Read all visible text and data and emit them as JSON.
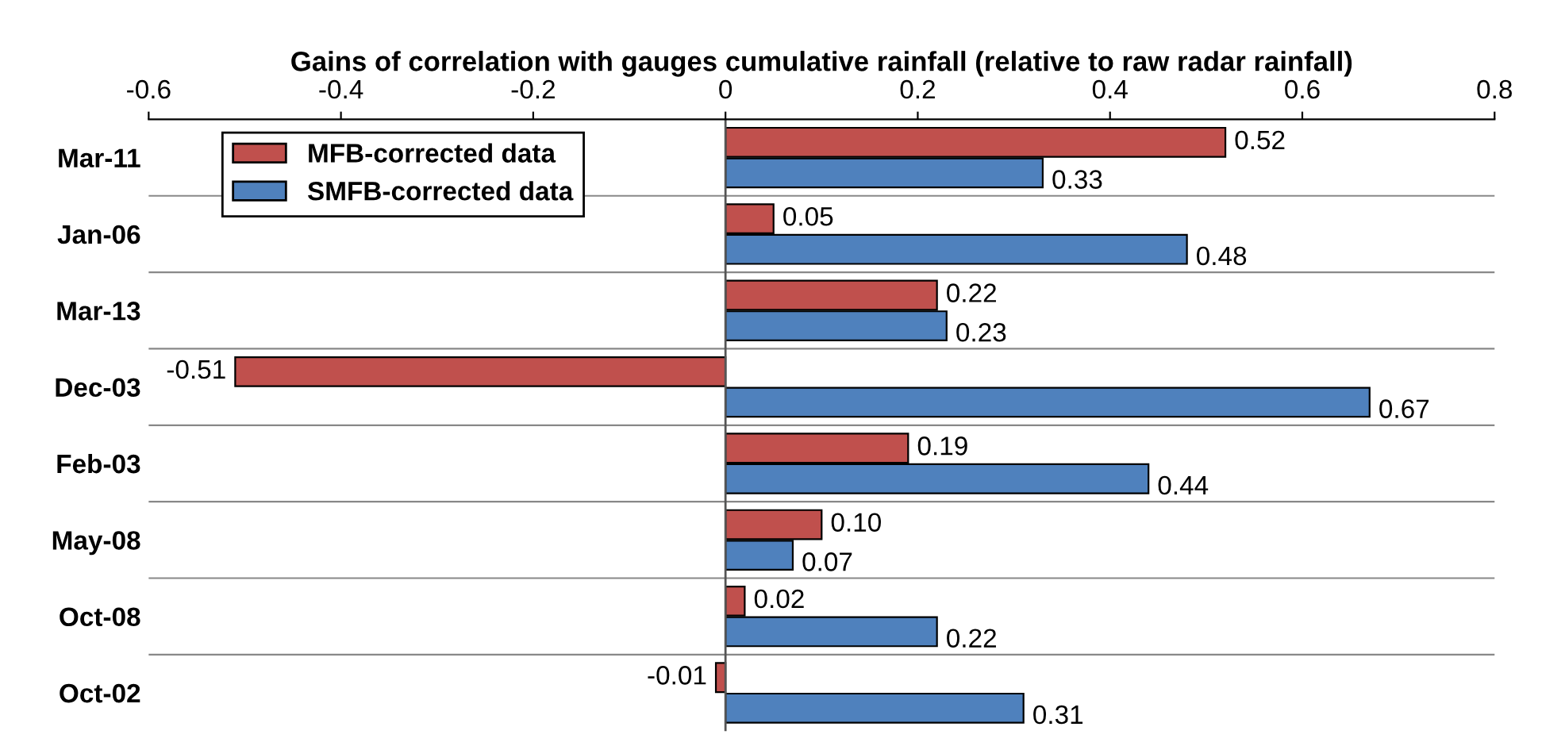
{
  "chart_data": {
    "type": "bar",
    "orientation": "horizontal",
    "title": "Gains of correlation with gauges cumulative rainfall (relative to raw radar rainfall)",
    "categories": [
      "Mar-11",
      "Jan-06",
      "Mar-13",
      "Dec-03",
      "Feb-03",
      "May-08",
      "Oct-08",
      "Oct-02"
    ],
    "series": [
      {
        "name": "MFB-corrected data",
        "color": "#c0504d",
        "values": [
          0.52,
          0.05,
          0.22,
          -0.51,
          0.19,
          0.1,
          0.02,
          -0.01
        ],
        "value_labels": [
          "0.52",
          "0.05",
          "0.22",
          "-0.51",
          "0.19",
          "0.10",
          "0.02",
          "-0.01"
        ]
      },
      {
        "name": "SMFB-corrected data",
        "color": "#4f81bd",
        "values": [
          0.33,
          0.48,
          0.23,
          0.67,
          0.44,
          0.07,
          0.22,
          0.31
        ],
        "value_labels": [
          "0.33",
          "0.48",
          "0.23",
          "0.67",
          "0.44",
          "0.07",
          "0.22",
          "0.31"
        ]
      }
    ],
    "xlim": [
      -0.6,
      0.8
    ],
    "xticks": [
      -0.6,
      -0.4,
      -0.2,
      0,
      0.2,
      0.4,
      0.6,
      0.8
    ],
    "grid": "y",
    "legend": "top left"
  }
}
